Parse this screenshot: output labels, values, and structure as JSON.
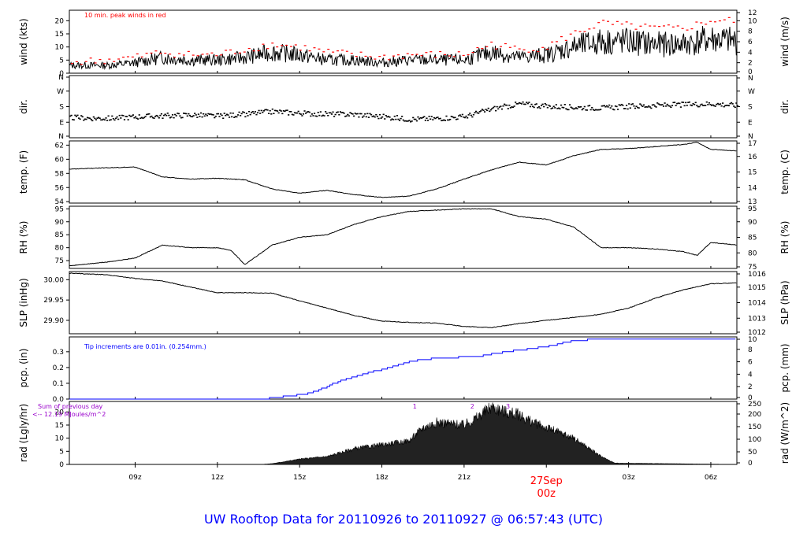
{
  "title": "UW Rooftop Data for 20110926  to  20110927 @ 06:57:43  (UTC)",
  "colors": {
    "accent_red": "#ff0000",
    "blue": "#0000ff",
    "purple": "#9900cc",
    "ink": "#000000"
  },
  "x_axis": {
    "ticks": [
      "09z",
      "12z",
      "15z",
      "18z",
      "21z",
      "03z",
      "06z"
    ],
    "tick_hours": [
      9,
      12,
      15,
      18,
      21,
      27,
      30
    ],
    "day_mark": {
      "hour": 24,
      "line1": "27Sep",
      "line2": "00z"
    },
    "range_hours": [
      6.6,
      30.95
    ]
  },
  "chart_data": [
    {
      "type": "line",
      "id": "wind",
      "ylabel_left": "wind (kts)",
      "ylabel_right": "wind (m/s)",
      "yticks_left": [
        "0",
        "5",
        "10",
        "15",
        "20"
      ],
      "yticks_right": [
        "0",
        "2",
        "4",
        "6",
        "8",
        "10",
        "12"
      ],
      "ylim": [
        0,
        24
      ],
      "annotation": "10 min. peak winds in red",
      "x": [
        6.6,
        8,
        9,
        10,
        11,
        12,
        13,
        14,
        15,
        16,
        17,
        18,
        19,
        20,
        21,
        22,
        23,
        24,
        25,
        26,
        27,
        28,
        29,
        30,
        30.95
      ],
      "series": [
        {
          "values": [
            3,
            3,
            4,
            6,
            5,
            5,
            6,
            8,
            7,
            5,
            5,
            4,
            5,
            5,
            5,
            8,
            6,
            7,
            10,
            12,
            12,
            11,
            11,
            13,
            12
          ]
        },
        {
          "values": [
            4,
            5,
            6,
            8,
            7,
            7,
            9,
            11,
            10,
            8,
            7,
            6,
            7,
            7,
            7,
            11,
            9,
            10,
            15,
            19,
            18,
            17,
            17,
            20,
            20
          ]
        }
      ]
    },
    {
      "type": "scatter",
      "id": "dir",
      "ylabel_left": "dir.",
      "ylabel_right": "dir.",
      "yticks_left": [
        "N",
        "E",
        "S",
        "W",
        "N"
      ],
      "yticks_right": [
        "N",
        "E",
        "S",
        "W",
        "N"
      ],
      "ylim": [
        0,
        360
      ],
      "x": [
        6.6,
        8,
        9,
        10,
        11,
        12,
        13,
        14,
        15,
        16,
        17,
        18,
        19,
        20,
        21,
        22,
        23,
        24,
        25,
        26,
        27,
        28,
        29,
        30,
        30.95
      ],
      "series": [
        {
          "values": [
            120,
            115,
            125,
            130,
            135,
            128,
            140,
            155,
            145,
            140,
            138,
            125,
            110,
            115,
            125,
            170,
            200,
            185,
            180,
            175,
            185,
            190,
            195,
            200,
            190
          ]
        }
      ]
    },
    {
      "type": "line",
      "id": "temp",
      "ylabel_left": "temp. (F)",
      "ylabel_right": "temp. (C)",
      "yticks_left": [
        "54",
        "56",
        "58",
        "60",
        "62"
      ],
      "yticks_right": [
        "13",
        "14",
        "15",
        "16",
        "17"
      ],
      "ylim": [
        53.8,
        62.6
      ],
      "x": [
        6.6,
        8,
        9,
        10,
        11,
        12,
        13,
        14,
        15,
        16,
        17,
        18,
        19,
        20,
        21,
        22,
        23,
        24,
        25,
        26,
        27,
        28,
        29,
        29.5,
        30,
        30.95
      ],
      "series": [
        {
          "values": [
            58.6,
            58.8,
            58.9,
            57.5,
            57.2,
            57.3,
            57.1,
            55.8,
            55.2,
            55.6,
            55.0,
            54.6,
            54.8,
            55.8,
            57.2,
            58.5,
            59.6,
            59.2,
            60.5,
            61.4,
            61.5,
            61.8,
            62.1,
            62.4,
            61.4,
            61.2
          ]
        }
      ]
    },
    {
      "type": "line",
      "id": "rh",
      "ylabel_left": "RH (%)",
      "ylabel_right": "RH (%)",
      "yticks_left": [
        "75",
        "80",
        "85",
        "90",
        "95"
      ],
      "yticks_right": [
        "75",
        "80",
        "85",
        "90",
        "95"
      ],
      "ylim": [
        72,
        96
      ],
      "x": [
        6.6,
        8,
        9,
        10,
        11,
        12,
        12.5,
        13,
        14,
        15,
        16,
        17,
        18,
        19,
        20,
        21,
        22,
        23,
        24,
        25,
        25.5,
        26,
        27,
        28,
        29,
        29.5,
        30,
        30.95
      ],
      "series": [
        {
          "values": [
            73,
            74.5,
            76,
            81,
            80,
            80,
            79,
            73.5,
            81,
            84,
            85,
            89,
            92,
            94,
            94.5,
            95,
            95,
            92,
            91,
            88,
            84,
            80,
            80,
            79.5,
            78.5,
            77,
            82,
            81
          ]
        }
      ]
    },
    {
      "type": "line",
      "id": "slp",
      "ylabel_left": "SLP (inHg)",
      "ylabel_right": "SLP (hPa)",
      "yticks_left": [
        "29.90",
        "29.95",
        "30.00"
      ],
      "yticks_right": [
        "1012",
        "1013",
        "1014",
        "1015",
        "1016"
      ],
      "ylim": [
        29.867,
        30.02
      ],
      "x": [
        6.6,
        8,
        9,
        10,
        11,
        12,
        13,
        14,
        15,
        16,
        17,
        18,
        19,
        20,
        21,
        22,
        23,
        24,
        25,
        26,
        27,
        28,
        29,
        30,
        30.95
      ],
      "series": [
        {
          "values": [
            30.016,
            30.012,
            30.003,
            29.997,
            29.982,
            29.968,
            29.968,
            29.967,
            29.948,
            29.93,
            29.912,
            29.898,
            29.895,
            29.893,
            29.885,
            29.882,
            29.892,
            29.9,
            29.907,
            29.915,
            29.93,
            29.955,
            29.975,
            29.99,
            29.992
          ]
        }
      ]
    },
    {
      "type": "line",
      "id": "pcp",
      "ylabel_left": "pcp. (in)",
      "ylabel_right": "pcp. (mm)",
      "yticks_left": [
        "0.0",
        "0.1",
        "0.2",
        "0.3"
      ],
      "yticks_right": [
        "0",
        "2",
        "4",
        "6",
        "8",
        "10"
      ],
      "ylim": [
        0,
        0.394
      ],
      "annotation": "Tip increments are 0.01in. (0.254mm.)",
      "x": [
        6.6,
        13.6,
        14.6,
        15.4,
        16.0,
        16.5,
        17.3,
        18.3,
        19.0,
        20.0,
        21.5,
        22.5,
        23.5,
        24.2,
        25.0,
        26.0,
        27.0,
        30.95
      ],
      "series": [
        {
          "values": [
            0,
            0,
            0.02,
            0.04,
            0.08,
            0.12,
            0.16,
            0.2,
            0.24,
            0.26,
            0.27,
            0.3,
            0.32,
            0.34,
            0.37,
            0.38,
            0.38,
            0.38
          ]
        }
      ]
    },
    {
      "type": "area",
      "id": "rad",
      "ylabel_left": "rad (Lgly/hr)",
      "ylabel_right": "rad (W/m^2)",
      "yticks_left": [
        "0",
        "5",
        "10",
        "15",
        "20"
      ],
      "yticks_right": [
        "0",
        "50",
        "100",
        "150",
        "200",
        "250"
      ],
      "ylim": [
        0,
        24
      ],
      "annotation_line1": "Sum of previous day",
      "annotation_line2": "<-- 12.19 MJoules/m^2",
      "markers": [
        {
          "label": "1",
          "x": 19.2
        },
        {
          "label": "2",
          "x": 21.3
        },
        {
          "label": "3",
          "x": 22.6
        }
      ],
      "x": [
        6.6,
        13.6,
        14,
        15,
        16,
        17,
        18,
        19,
        19.5,
        20,
        21,
        21.5,
        22,
        22.5,
        23,
        23.5,
        24,
        25,
        26,
        26.5,
        30.95
      ],
      "series": [
        {
          "values": [
            0,
            0,
            0.3,
            2,
            3,
            6,
            7.5,
            9,
            14,
            16,
            15,
            18,
            22,
            20,
            19,
            16,
            14,
            10,
            3,
            0.5,
            0
          ]
        }
      ]
    }
  ]
}
